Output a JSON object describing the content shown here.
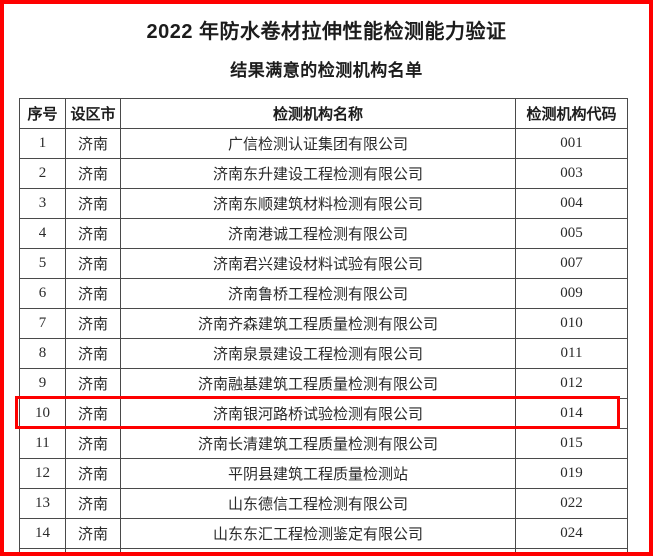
{
  "page": {
    "title": "2022 年防水卷材拉伸性能检测能力验证",
    "subtitle": "结果满意的检测机构名单"
  },
  "colors": {
    "frame_red": "#fe0000",
    "highlight_red": "#fe0000",
    "table_border": "#4a4a4a",
    "text": "#2a2a2a",
    "background": "#ffffff"
  },
  "table": {
    "headers": [
      "序号",
      "设区市",
      "检测机构名称",
      "检测机构代码"
    ],
    "rows": [
      {
        "no": "1",
        "city": "济南",
        "name": "广信检测认证集团有限公司",
        "code": "001",
        "highlighted": false
      },
      {
        "no": "2",
        "city": "济南",
        "name": "济南东升建设工程检测有限公司",
        "code": "003",
        "highlighted": false
      },
      {
        "no": "3",
        "city": "济南",
        "name": "济南东顺建筑材料检测有限公司",
        "code": "004",
        "highlighted": false
      },
      {
        "no": "4",
        "city": "济南",
        "name": "济南港诚工程检测有限公司",
        "code": "005",
        "highlighted": false
      },
      {
        "no": "5",
        "city": "济南",
        "name": "济南君兴建设材料试验有限公司",
        "code": "007",
        "highlighted": false
      },
      {
        "no": "6",
        "city": "济南",
        "name": "济南鲁桥工程检测有限公司",
        "code": "009",
        "highlighted": false
      },
      {
        "no": "7",
        "city": "济南",
        "name": "济南齐森建筑工程质量检测有限公司",
        "code": "010",
        "highlighted": false
      },
      {
        "no": "8",
        "city": "济南",
        "name": "济南泉景建设工程检测有限公司",
        "code": "011",
        "highlighted": false
      },
      {
        "no": "9",
        "city": "济南",
        "name": "济南融基建筑工程质量检测有限公司",
        "code": "012",
        "highlighted": false
      },
      {
        "no": "10",
        "city": "济南",
        "name": "济南银河路桥试验检测有限公司",
        "code": "014",
        "highlighted": true
      },
      {
        "no": "11",
        "city": "济南",
        "name": "济南长清建筑工程质量检测有限公司",
        "code": "015",
        "highlighted": false
      },
      {
        "no": "12",
        "city": "济南",
        "name": "平阴县建筑工程质量检测站",
        "code": "019",
        "highlighted": false
      },
      {
        "no": "13",
        "city": "济南",
        "name": "山东德信工程检测有限公司",
        "code": "022",
        "highlighted": false
      },
      {
        "no": "14",
        "city": "济南",
        "name": "山东东汇工程检测鉴定有限公司",
        "code": "024",
        "highlighted": false
      }
    ]
  }
}
